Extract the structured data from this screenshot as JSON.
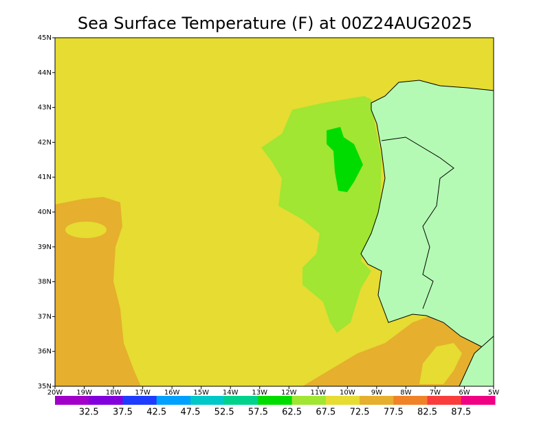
{
  "title": "Sea Surface Temperature (F) at 00Z24AUG2025",
  "lat_labels": [
    "45N",
    "44N",
    "43N",
    "42N",
    "41N",
    "40N",
    "39N",
    "38N",
    "37N",
    "36N",
    "35N"
  ],
  "lon_labels": [
    "20W",
    "19W",
    "18W",
    "17W",
    "16W",
    "15W",
    "14W",
    "13W",
    "12W",
    "11W",
    "10W",
    "9W",
    "8W",
    "7W",
    "6W",
    "5W"
  ],
  "colorbar": {
    "colors": [
      "#a000c8",
      "#8200dc",
      "#1e3cff",
      "#00a0ff",
      "#00c8c8",
      "#00d28c",
      "#00dc00",
      "#a0e632",
      "#e6dc32",
      "#e6af2d",
      "#f08228",
      "#fa3c3c",
      "#f00082"
    ],
    "labels": [
      "32.5",
      "37.5",
      "42.5",
      "47.5",
      "52.5",
      "57.5",
      "62.5",
      "67.5",
      "72.5",
      "77.5",
      "82.5",
      "87.5"
    ]
  }
}
